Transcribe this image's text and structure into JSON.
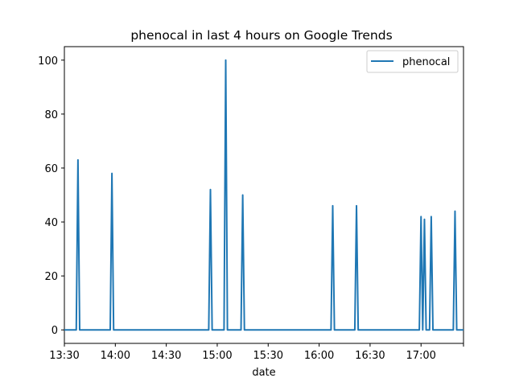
{
  "chart_data": {
    "type": "line",
    "title": "phenocal in last 4 hours on Google Trends",
    "xlabel": "date",
    "ylabel": "",
    "x_ticks": [
      "13:30",
      "14:00",
      "14:30",
      "15:00",
      "15:30",
      "16:00",
      "16:30",
      "17:00"
    ],
    "x_tick_minutes": [
      810,
      840,
      870,
      900,
      930,
      960,
      990,
      1020
    ],
    "xlim_minutes": [
      810,
      1045
    ],
    "y_ticks": [
      0,
      20,
      40,
      60,
      80,
      100
    ],
    "ylim": [
      -5,
      105
    ],
    "legend": {
      "position": "top-right"
    },
    "grid": false,
    "series": [
      {
        "name": "phenocal",
        "color": "#1f77b4",
        "points": [
          {
            "x": "13:30",
            "y": 0
          },
          {
            "x": "13:37",
            "y": 0
          },
          {
            "x": "13:38",
            "y": 63
          },
          {
            "x": "13:39",
            "y": 0
          },
          {
            "x": "13:57",
            "y": 0
          },
          {
            "x": "13:58",
            "y": 58
          },
          {
            "x": "13:59",
            "y": 0
          },
          {
            "x": "14:55",
            "y": 0
          },
          {
            "x": "14:56",
            "y": 52
          },
          {
            "x": "14:57",
            "y": 0
          },
          {
            "x": "15:04",
            "y": 0
          },
          {
            "x": "15:05",
            "y": 100
          },
          {
            "x": "15:06",
            "y": 0
          },
          {
            "x": "15:14",
            "y": 0
          },
          {
            "x": "15:15",
            "y": 50
          },
          {
            "x": "15:16",
            "y": 0
          },
          {
            "x": "16:07",
            "y": 0
          },
          {
            "x": "16:08",
            "y": 46
          },
          {
            "x": "16:09",
            "y": 0
          },
          {
            "x": "16:21",
            "y": 0
          },
          {
            "x": "16:22",
            "y": 46
          },
          {
            "x": "16:23",
            "y": 0
          },
          {
            "x": "16:59",
            "y": 0
          },
          {
            "x": "17:00",
            "y": 42
          },
          {
            "x": "17:01",
            "y": 0
          },
          {
            "x": "17:02",
            "y": 41
          },
          {
            "x": "17:03",
            "y": 0
          },
          {
            "x": "17:05",
            "y": 0
          },
          {
            "x": "17:06",
            "y": 42
          },
          {
            "x": "17:07",
            "y": 0
          },
          {
            "x": "17:19",
            "y": 0
          },
          {
            "x": "17:20",
            "y": 44
          },
          {
            "x": "17:21",
            "y": 0
          },
          {
            "x": "17:25",
            "y": 0
          }
        ]
      }
    ]
  }
}
